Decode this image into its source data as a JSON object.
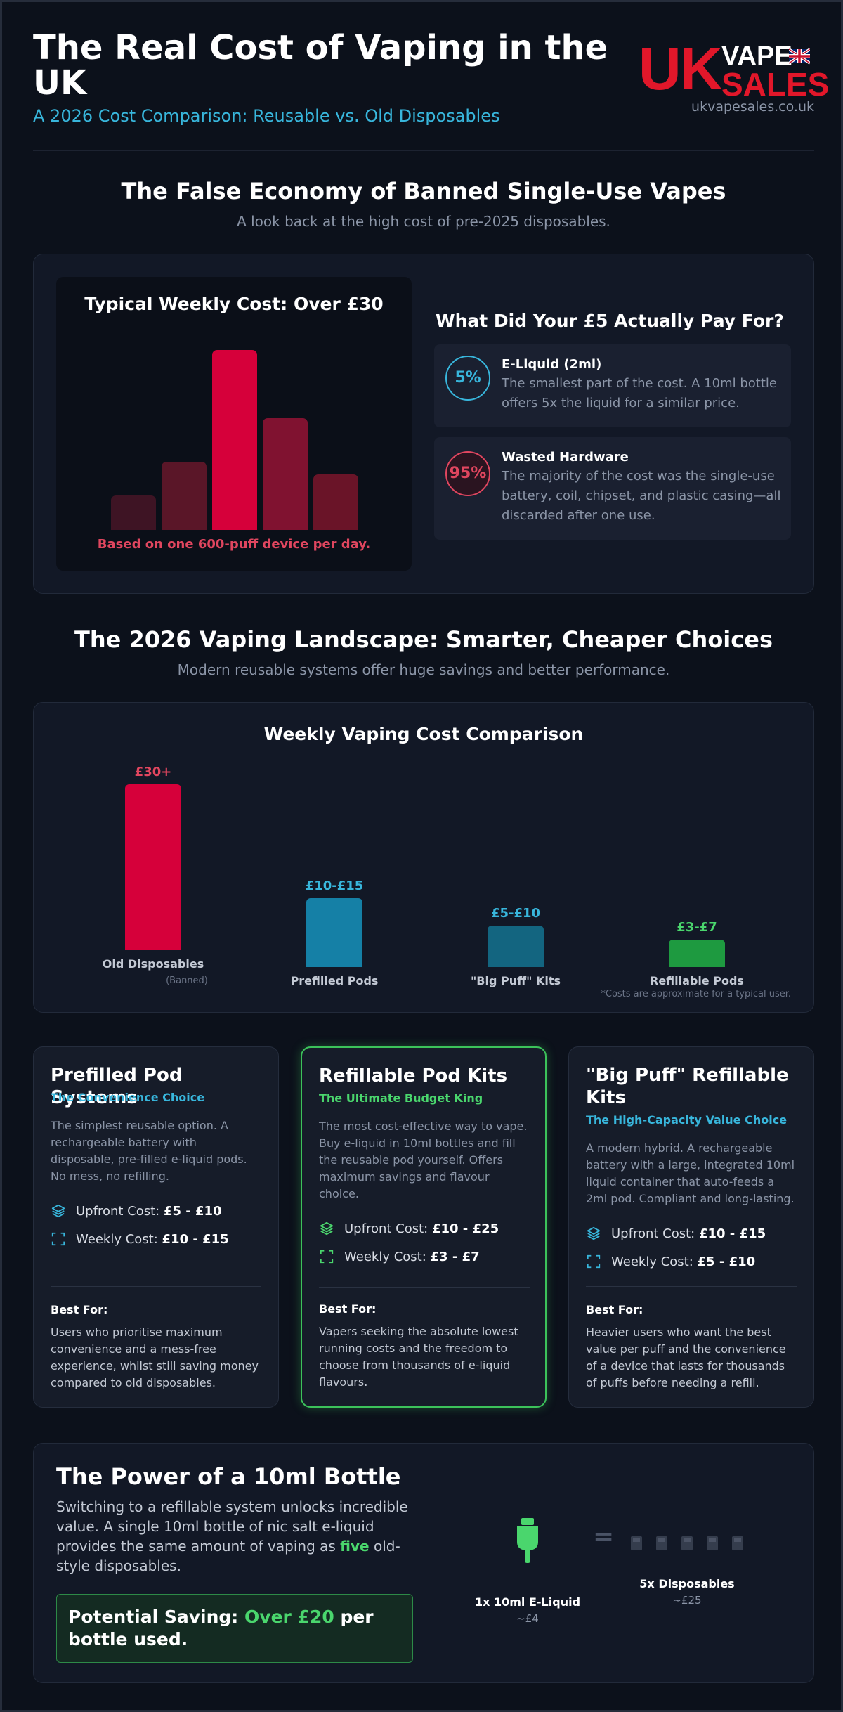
{
  "header": {
    "title": "The Real Cost of Vaping in the UK",
    "subtitle": "A 2026 Cost Comparison: Reusable vs. Old Disposables",
    "logo_uk": "UK",
    "logo_vape": "VAPE",
    "logo_sales": "SALES",
    "site": "ukvapesales.co.uk"
  },
  "section1": {
    "title": "The False Economy of Banned Single-Use Vapes",
    "subtitle": "A look back at the high cost of pre-2025 disposables.",
    "chart_title": "Typical Weekly Cost: Over £30",
    "chart_note": "Based on one 600-puff device per day.",
    "pay_title": "What Did Your £5 Actually Pay For?",
    "items": [
      {
        "pct": "5%",
        "heading": "E-Liquid (2ml)",
        "text": "The smallest part of the cost. A 10ml bottle offers 5x the liquid for a similar price.",
        "color": "#38b6dc"
      },
      {
        "pct": "95%",
        "heading": "Wasted Hardware",
        "text": "The majority of the cost was the single-use battery, coil, chipset, and plastic casing—all discarded after one use.",
        "color": "#e0465f"
      }
    ]
  },
  "section2": {
    "title": "The 2026 Vaping Landscape: Smarter, Cheaper Choices",
    "subtitle": "Modern reusable systems offer huge savings and better performance.",
    "chart_title": "Weekly Vaping Cost Comparison",
    "footnote": "*Costs are approximate for a typical user.",
    "old_sub": "(Banned)"
  },
  "chart_data": [
    {
      "type": "bar",
      "title": "Typical Weekly Cost: Over £30",
      "note": "Based on one 600-puff device per day.",
      "categories": [
        "",
        "",
        "",
        "",
        ""
      ],
      "values": [
        0.19,
        0.38,
        1.0,
        0.62,
        0.31
      ],
      "colors": [
        "#3e1424",
        "#5a1628",
        "#d6003a",
        "#801230",
        "#6a1428"
      ]
    },
    {
      "type": "bar",
      "title": "Weekly Vaping Cost Comparison",
      "categories": [
        "Old Disposables",
        "Prefilled Pods",
        "\"Big Puff\" Kits",
        "Refillable Pods"
      ],
      "labels": [
        "£30+",
        "£10-£15",
        "£5-£10",
        "£3-£7"
      ],
      "values": [
        30,
        12.5,
        7.5,
        5
      ],
      "colors": [
        "#d6003a",
        "#1580a6",
        "#136580",
        "#1e9a40"
      ],
      "label_colors": [
        "#e0465f",
        "#38b6dc",
        "#38b6dc",
        "#4ad66d"
      ]
    }
  ],
  "cards": [
    {
      "title": "Prefilled Pod Systems",
      "tag": "The Convenience Choice",
      "tag_color": "#38b6dc",
      "desc": "The simplest reusable option. A rechargeable battery with disposable, pre-filled e-liquid pods. No mess, no refilling.",
      "upfront_label": "Upfront Cost:",
      "upfront": "£5 - £10",
      "weekly_label": "Weekly Cost:",
      "weekly": "£10 - £15",
      "best_label": "Best For:",
      "best": "Users who prioritise maximum convenience and a mess-free experience, whilst still saving money compared to old disposables."
    },
    {
      "title": "Refillable Pod Kits",
      "tag": "The Ultimate Budget King",
      "tag_color": "#4ad66d",
      "desc": "The most cost-effective way to vape. Buy e-liquid in 10ml bottles and fill the reusable pod yourself. Offers maximum savings and flavour choice.",
      "upfront_label": "Upfront Cost:",
      "upfront": "£10 - £25",
      "weekly_label": "Weekly Cost:",
      "weekly": "£3 - £7",
      "best_label": "Best For:",
      "best": "Vapers seeking the absolute lowest running costs and the freedom to choose from thousands of e-liquid flavours."
    },
    {
      "title": "\"Big Puff\" Refillable Kits",
      "tag": "The High-Capacity Value Choice",
      "tag_color": "#38b6dc",
      "desc": "A modern hybrid. A rechargeable battery with a large, integrated 10ml liquid container that auto-feeds a 2ml pod. Compliant and long-lasting.",
      "upfront_label": "Upfront Cost:",
      "upfront": "£10 - £15",
      "weekly_label": "Weekly Cost:",
      "weekly": "£5 - £10",
      "best_label": "Best For:",
      "best": "Heavier users who want the best value per puff and the convenience of a device that lasts for thousands of puffs before needing a refill."
    }
  ],
  "bottle": {
    "title": "The Power of a 10ml Bottle",
    "text_before": "Switching to a refillable system unlocks incredible value. A single 10ml bottle of nic salt e-liquid provides the same amount of vaping as ",
    "text_bold": "five",
    "text_after": " old-style disposables.",
    "saving_label": "Potential Saving: ",
    "saving_value": "Over £20",
    "saving_after": " per bottle used.",
    "eliquid_label": "1x 10ml E-Liquid",
    "eliquid_price": "~£4",
    "disp_label": "5x Disposables",
    "disp_price": "~£25",
    "icon_color": "#4ad66d"
  }
}
